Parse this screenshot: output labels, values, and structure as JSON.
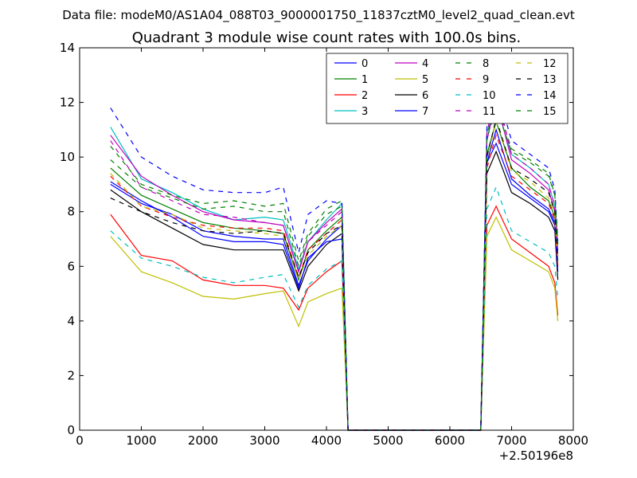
{
  "figure": {
    "suptitle": "Data file: modeM0/AS1A04_088T03_9000001750_11837cztM0_level2_quad_clean.evt"
  },
  "chart_data": {
    "type": "line",
    "title": "Quadrant 3 module wise count rates with 100.0s bins.",
    "xlabel": "",
    "ylabel": "",
    "x_offset_label": "+2.50196e8",
    "xlim": [
      0,
      8000
    ],
    "ylim": [
      0,
      14
    ],
    "xticks": [
      0,
      1000,
      2000,
      3000,
      4000,
      5000,
      6000,
      7000,
      8000
    ],
    "yticks": [
      0,
      2,
      4,
      6,
      8,
      10,
      12,
      14
    ],
    "grid": false,
    "legend_position": "top-right",
    "x": [
      500,
      1000,
      1500,
      2000,
      2500,
      3000,
      3300,
      3550,
      3700,
      4000,
      4250,
      4350,
      5000,
      6000,
      6500,
      6600,
      6750,
      7000,
      7300,
      7600,
      7700,
      7750
    ],
    "series": [
      {
        "name": "0",
        "color": "#0000ff",
        "dash": "solid",
        "values": [
          9.0,
          8.3,
          7.9,
          7.3,
          7.1,
          7.0,
          7.0,
          5.3,
          6.2,
          7.0,
          7.5,
          0,
          0,
          0,
          0,
          9.8,
          11.0,
          9.2,
          8.6,
          8.1,
          7.6,
          6.0
        ]
      },
      {
        "name": "1",
        "color": "#008000",
        "dash": "solid",
        "values": [
          9.6,
          8.6,
          8.1,
          7.6,
          7.4,
          7.3,
          7.2,
          5.5,
          6.6,
          7.3,
          7.8,
          0,
          0,
          0,
          0,
          10.1,
          11.3,
          9.6,
          8.9,
          8.4,
          7.8,
          6.2
        ]
      },
      {
        "name": "2",
        "color": "#ff0000",
        "dash": "solid",
        "values": [
          7.9,
          6.4,
          6.2,
          5.5,
          5.3,
          5.3,
          5.2,
          4.4,
          5.2,
          5.8,
          6.2,
          0,
          0,
          0,
          0,
          7.5,
          8.2,
          7.0,
          6.5,
          6.0,
          5.4,
          4.2
        ]
      },
      {
        "name": "3",
        "color": "#00bfbf",
        "dash": "solid",
        "values": [
          11.1,
          9.2,
          8.7,
          8.1,
          7.7,
          7.8,
          7.7,
          5.9,
          6.9,
          7.7,
          8.3,
          0,
          0,
          0,
          0,
          10.9,
          11.9,
          10.1,
          9.6,
          9.0,
          8.2,
          6.6
        ]
      },
      {
        "name": "4",
        "color": "#bf00bf",
        "dash": "solid",
        "values": [
          10.8,
          9.3,
          8.6,
          8.0,
          7.7,
          7.6,
          7.5,
          5.8,
          6.9,
          7.6,
          8.1,
          0,
          0,
          0,
          0,
          10.6,
          12.1,
          9.9,
          9.4,
          8.8,
          8.0,
          6.4
        ]
      },
      {
        "name": "5",
        "color": "#bfbf00",
        "dash": "solid",
        "values": [
          7.1,
          5.8,
          5.4,
          4.9,
          4.8,
          5.0,
          5.1,
          3.8,
          4.7,
          5.0,
          5.2,
          0,
          0,
          0,
          0,
          7.1,
          7.8,
          6.6,
          6.2,
          5.8,
          5.2,
          4.0
        ]
      },
      {
        "name": "6",
        "color": "#000000",
        "dash": "solid",
        "values": [
          8.8,
          8.0,
          7.4,
          6.8,
          6.6,
          6.6,
          6.6,
          5.1,
          6.0,
          6.8,
          7.2,
          0,
          0,
          0,
          0,
          9.4,
          10.2,
          8.7,
          8.3,
          7.8,
          7.3,
          5.5
        ]
      },
      {
        "name": "7",
        "color": "#0000ff",
        "dash": "solid",
        "values": [
          9.1,
          8.4,
          7.8,
          7.1,
          6.9,
          6.9,
          6.8,
          5.2,
          6.3,
          6.9,
          7.0,
          0,
          0,
          0,
          0,
          9.8,
          10.5,
          9.0,
          8.5,
          8.0,
          7.5,
          5.8
        ]
      },
      {
        "name": "8",
        "color": "#008000",
        "dash": "dashed",
        "values": [
          10.4,
          9.0,
          8.6,
          8.3,
          8.4,
          8.2,
          8.3,
          6.2,
          7.2,
          8.1,
          8.4,
          0,
          0,
          0,
          0,
          10.8,
          12.0,
          10.3,
          9.9,
          9.4,
          8.6,
          6.8
        ]
      },
      {
        "name": "9",
        "color": "#ff0000",
        "dash": "dashed",
        "values": [
          9.3,
          8.2,
          7.8,
          7.5,
          7.4,
          7.4,
          7.3,
          5.6,
          6.6,
          7.2,
          7.7,
          0,
          0,
          0,
          0,
          9.6,
          10.8,
          9.3,
          8.8,
          8.3,
          7.7,
          6.0
        ]
      },
      {
        "name": "10",
        "color": "#00bfbf",
        "dash": "dashed",
        "values": [
          7.3,
          6.3,
          6.0,
          5.6,
          5.4,
          5.6,
          5.7,
          4.5,
          5.3,
          5.9,
          6.2,
          0,
          0,
          0,
          0,
          8.1,
          8.9,
          7.3,
          6.9,
          6.5,
          6.0,
          4.8
        ]
      },
      {
        "name": "11",
        "color": "#bf00bf",
        "dash": "dashed",
        "values": [
          10.6,
          8.9,
          8.4,
          7.9,
          7.8,
          7.6,
          7.5,
          5.8,
          6.9,
          7.5,
          8.0,
          0,
          0,
          0,
          0,
          10.9,
          12.4,
          10.1,
          9.6,
          9.0,
          8.2,
          6.5
        ]
      },
      {
        "name": "12",
        "color": "#bfbf00",
        "dash": "dashed",
        "values": [
          9.4,
          8.2,
          7.9,
          7.4,
          7.3,
          7.2,
          7.1,
          5.5,
          6.4,
          7.1,
          7.5,
          0,
          0,
          0,
          0,
          9.9,
          11.3,
          9.5,
          9.1,
          8.5,
          7.9,
          6.2
        ]
      },
      {
        "name": "13",
        "color": "#000000",
        "dash": "dashed",
        "values": [
          8.5,
          8.0,
          7.6,
          7.3,
          7.2,
          7.3,
          7.2,
          5.6,
          6.5,
          7.2,
          7.5,
          0,
          0,
          0,
          0,
          10.0,
          11.4,
          9.6,
          9.2,
          8.7,
          8.0,
          6.3
        ]
      },
      {
        "name": "14",
        "color": "#0000ff",
        "dash": "dashed",
        "values": [
          11.8,
          10.0,
          9.3,
          8.8,
          8.7,
          8.7,
          8.9,
          6.5,
          7.9,
          8.4,
          8.3,
          0,
          0,
          0,
          0,
          11.1,
          12.6,
          10.6,
          10.1,
          9.6,
          8.8,
          6.9
        ]
      },
      {
        "name": "15",
        "color": "#008000",
        "dash": "dashed",
        "values": [
          9.9,
          8.9,
          8.5,
          8.1,
          8.2,
          8.0,
          8.0,
          6.0,
          7.1,
          7.9,
          8.2,
          0,
          0,
          0,
          0,
          10.7,
          11.8,
          10.2,
          9.8,
          9.3,
          8.6,
          6.7
        ]
      }
    ]
  }
}
